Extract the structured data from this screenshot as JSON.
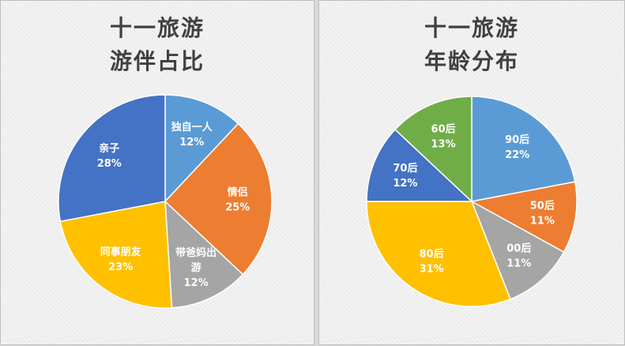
{
  "chart_data": [
    {
      "type": "pie",
      "title_lines": [
        "十一旅游",
        "游伴占比"
      ],
      "slices": [
        {
          "label": "独自一人",
          "value": 12,
          "pct": "12%",
          "color": "#5b9bd5"
        },
        {
          "label": "情侣",
          "value": 25,
          "pct": "25%",
          "color": "#ed7d31"
        },
        {
          "label": "带爸妈出游",
          "label_lines": [
            "带爸妈出",
            "游"
          ],
          "value": 12,
          "pct": "12%",
          "color": "#a5a5a5"
        },
        {
          "label": "同事朋友",
          "value": 23,
          "pct": "23%",
          "color": "#ffc000"
        },
        {
          "label": "亲子",
          "value": 28,
          "pct": "28%",
          "color": "#4472c4"
        }
      ]
    },
    {
      "type": "pie",
      "title_lines": [
        "十一旅游",
        "年龄分布"
      ],
      "slices": [
        {
          "label": "90后",
          "value": 22,
          "pct": "22%",
          "color": "#5b9bd5"
        },
        {
          "label": "50后",
          "value": 11,
          "pct": "11%",
          "color": "#ed7d31"
        },
        {
          "label": "00后",
          "value": 11,
          "pct": "11%",
          "color": "#a5a5a5"
        },
        {
          "label": "80后",
          "value": 31,
          "pct": "31%",
          "color": "#ffc000"
        },
        {
          "label": "70后",
          "value": 12,
          "pct": "12%",
          "color": "#4472c4"
        },
        {
          "label": "60后",
          "value": 13,
          "pct": "13%",
          "color": "#70ad47"
        }
      ]
    }
  ]
}
